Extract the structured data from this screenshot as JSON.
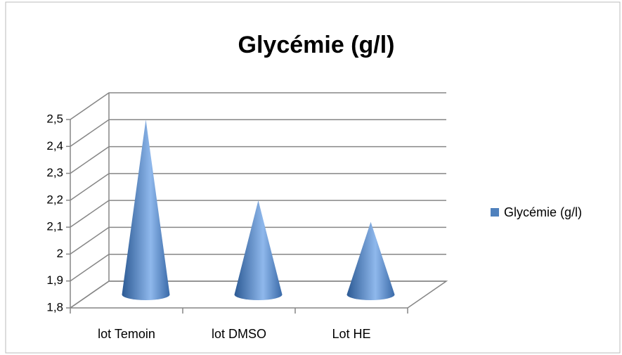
{
  "chart_data": {
    "type": "bar3d-cone",
    "title": "Glycémie (g/l)",
    "categories": [
      "lot Temoin",
      "lot DMSO",
      "Lot HE"
    ],
    "series": [
      {
        "name": "Glycémie (g/l)",
        "color": "#4f81bd",
        "values": [
          2.45,
          2.15,
          2.07
        ]
      }
    ],
    "ylim": [
      1.8,
      2.5
    ],
    "yticks": [
      {
        "value": 1.8,
        "label": "1,8"
      },
      {
        "value": 1.9,
        "label": "1,9"
      },
      2,
      {
        "value": 2.1,
        "label": "2,1"
      },
      {
        "value": 2.2,
        "label": "2,2"
      },
      {
        "value": 2.3,
        "label": "2,3"
      },
      {
        "value": 2.4,
        "label": "2,4"
      },
      {
        "value": 2.5,
        "label": "2,5"
      }
    ],
    "grid": true,
    "legend": "right"
  }
}
